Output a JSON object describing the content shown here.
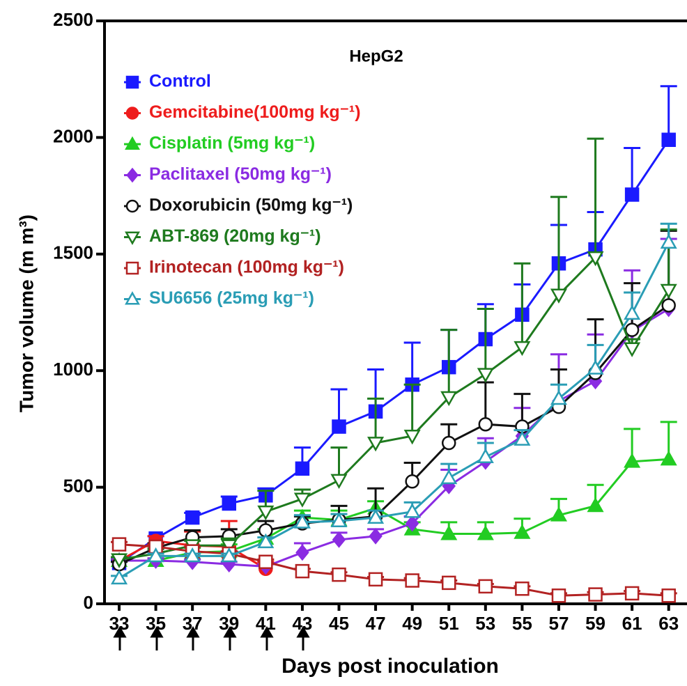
{
  "chart_data": {
    "type": "line",
    "title": "HepG2",
    "xlabel": "Days post inoculation",
    "ylabel": "Tumor volume (m m³)",
    "x": [
      33,
      35,
      37,
      39,
      41,
      43,
      45,
      47,
      49,
      51,
      53,
      55,
      57,
      59,
      61,
      63
    ],
    "xlim": [
      32.2,
      64
    ],
    "xticks": [
      33,
      35,
      37,
      39,
      41,
      43,
      45,
      47,
      49,
      51,
      53,
      55,
      57,
      59,
      61,
      63
    ],
    "ylim": [
      0,
      2500
    ],
    "yticks": [
      0,
      500,
      1000,
      1500,
      2000,
      2500
    ],
    "grid": false,
    "series": [
      {
        "name": "Control",
        "color": "#1a1aff",
        "marker": "square",
        "filled": true,
        "values": [
          175,
          280,
          370,
          430,
          465,
          580,
          760,
          825,
          940,
          1015,
          1135,
          1240,
          1460,
          1520,
          1755,
          1990
        ],
        "errors": [
          10,
          10,
          20,
          30,
          30,
          90,
          160,
          180,
          180,
          160,
          150,
          130,
          165,
          160,
          200,
          230
        ]
      },
      {
        "name": "Gemcitabine(100mg kg⁻¹)",
        "color": "#ee1c1c",
        "marker": "circle",
        "filled": true,
        "values": [
          185,
          270,
          250,
          245,
          150,
          null,
          null,
          null,
          null,
          null,
          null,
          null,
          null,
          null,
          null,
          null
        ],
        "errors": [
          10,
          20,
          60,
          110,
          30,
          null,
          null,
          null,
          null,
          null,
          null,
          null,
          null,
          null,
          null,
          null
        ]
      },
      {
        "name": "Cisplatin (5mg kg⁻¹)",
        "color": "#22cc22",
        "marker": "triangle-up",
        "filled": true,
        "values": [
          185,
          185,
          220,
          225,
          280,
          370,
          360,
          410,
          320,
          300,
          300,
          305,
          380,
          420,
          610,
          620
        ],
        "errors": [
          10,
          10,
          20,
          30,
          40,
          30,
          40,
          30,
          30,
          50,
          50,
          60,
          70,
          90,
          140,
          160
        ]
      },
      {
        "name": "Paclitaxel (50mg kg⁻¹)",
        "color": "#8a2be2",
        "marker": "diamond",
        "filled": true,
        "values": [
          185,
          185,
          180,
          170,
          160,
          220,
          275,
          290,
          345,
          505,
          610,
          720,
          870,
          955,
          1170,
          1265
        ],
        "errors": [
          10,
          10,
          10,
          10,
          10,
          40,
          30,
          30,
          30,
          70,
          100,
          120,
          200,
          200,
          260,
          300
        ]
      },
      {
        "name": "Doxorubicin (50mg kg⁻¹)",
        "color": "#111111",
        "marker": "circle",
        "filled": false,
        "values": [
          170,
          240,
          285,
          290,
          315,
          345,
          360,
          375,
          525,
          690,
          770,
          760,
          845,
          990,
          1175,
          1280
        ],
        "errors": [
          10,
          20,
          30,
          30,
          40,
          30,
          60,
          120,
          80,
          80,
          180,
          140,
          160,
          230,
          200,
          320
        ]
      },
      {
        "name": "ABT-869 (20mg kg⁻¹)",
        "color": "#1e7a1e",
        "marker": "triangle-down",
        "filled": false,
        "values": [
          190,
          215,
          250,
          250,
          395,
          450,
          530,
          690,
          720,
          885,
          985,
          1100,
          1325,
          1485,
          1095,
          1345
        ],
        "errors": [
          10,
          20,
          20,
          30,
          90,
          40,
          140,
          190,
          220,
          290,
          280,
          360,
          420,
          510,
          40,
          260
        ]
      },
      {
        "name": "Irinotecan (100mg kg⁻¹)",
        "color": "#b22222",
        "marker": "square",
        "filled": false,
        "values": [
          255,
          245,
          225,
          215,
          180,
          140,
          125,
          105,
          100,
          90,
          75,
          65,
          35,
          40,
          45,
          35
        ],
        "errors": [
          10,
          10,
          20,
          10,
          10,
          10,
          10,
          10,
          10,
          10,
          10,
          10,
          10,
          10,
          10,
          10
        ]
      },
      {
        "name": "SU6656 (25mg kg⁻¹)",
        "color": "#2a9db5",
        "marker": "triangle-up",
        "filled": false,
        "values": [
          110,
          205,
          205,
          205,
          265,
          350,
          355,
          370,
          395,
          540,
          630,
          705,
          880,
          1010,
          1245,
          1550
        ],
        "errors": [
          10,
          10,
          10,
          10,
          20,
          30,
          30,
          30,
          40,
          60,
          60,
          40,
          60,
          100,
          90,
          80
        ]
      }
    ]
  }
}
